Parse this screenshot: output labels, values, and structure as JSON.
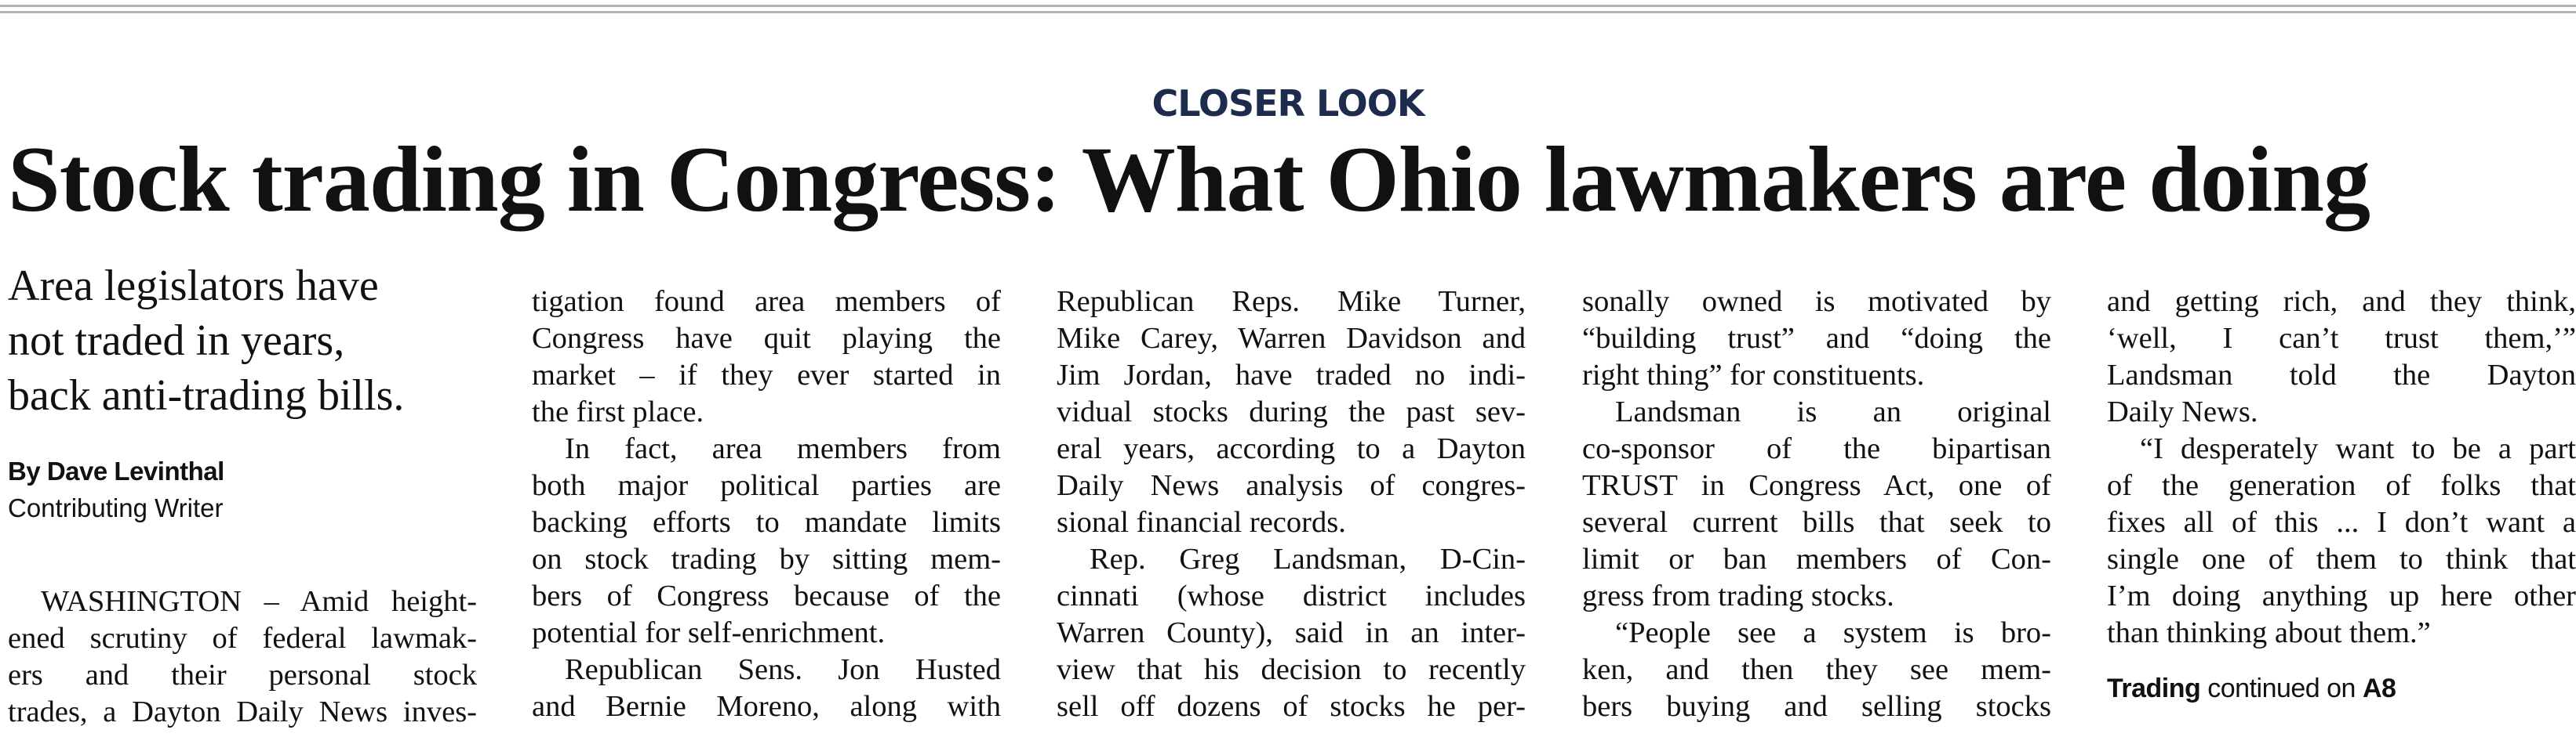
{
  "kicker": "CLOSER LOOK",
  "headline": "Stock trading in Congress: What Ohio lawmakers are doing",
  "deck": [
    "Area legislators have",
    "not traded in years,",
    "back anti-trading bills."
  ],
  "byline": {
    "name": "By Dave Levinthal",
    "role": "Contributing Writer"
  },
  "columns": [
    {
      "paragraphs": [
        [
          "WASHINGTON – Amid height-",
          "ened scrutiny of federal lawmak-",
          "ers and their personal stock",
          "trades, a Dayton Daily News inves-"
        ]
      ]
    },
    {
      "paragraphs": [
        [
          "tigation found area members of",
          "Congress have quit playing the",
          "market – if they ever started in",
          "the first place."
        ],
        [
          "In fact, area members from",
          "both major political parties are",
          "backing efforts to mandate limits",
          "on stock trading by sitting mem-",
          "bers of Congress because of the",
          "potential for self-enrichment."
        ],
        [
          "Republican Sens. Jon Husted",
          "and Bernie Moreno, along with"
        ]
      ]
    },
    {
      "paragraphs": [
        [
          "Republican Reps. Mike Turner,",
          "Mike Carey, Warren Davidson and",
          "Jim Jordan, have traded no indi-",
          "vidual stocks during the past sev-",
          "eral years, according to a Dayton",
          "Daily News analysis of congres-",
          "sional financial records."
        ],
        [
          "Rep. Greg Landsman, D-Cin-",
          "cinnati (whose district includes",
          "Warren County), said in an inter-",
          "view that his decision to recently",
          "sell off dozens of stocks he per-"
        ]
      ]
    },
    {
      "paragraphs": [
        [
          "sonally owned is motivated by",
          "“building trust” and “doing the",
          "right thing” for constituents."
        ],
        [
          "Landsman is an original",
          "co-sponsor of the bipartisan",
          "TRUST in Congress Act, one of",
          "several current bills that seek to",
          "limit or ban members of Con-",
          "gress from trading stocks."
        ],
        [
          "“People see a system is bro-",
          "ken, and then they see mem-",
          "bers buying and selling stocks"
        ]
      ]
    },
    {
      "paragraphs": [
        [
          "and getting rich, and they think,",
          "‘well, I can’t trust them,’”",
          "Landsman told the Dayton",
          "Daily News."
        ],
        [
          "“I desperately want to be a part",
          "of the generation of folks that",
          "fixes all of this ... I don’t want a",
          "single one of them to think that",
          "I’m doing anything up here other",
          "than thinking about them.”"
        ]
      ]
    }
  ],
  "jump": {
    "slug": "Trading",
    "text": "continued on",
    "page": "A8"
  }
}
